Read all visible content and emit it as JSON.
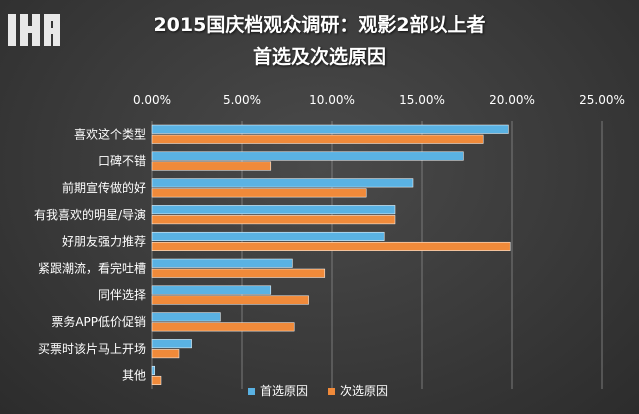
{
  "title_line1": "2015国庆档观众调研：观影2部以上者",
  "title_line2": "首选及次选原因",
  "logo": {
    "icon": "ir-logo-icon"
  },
  "colors": {
    "primary": "#5ab2e3",
    "secondary": "#f08a3a",
    "grid": "#7a7a7a"
  },
  "chart_data": {
    "type": "bar",
    "orientation": "horizontal",
    "title": "2015国庆档观众调研：观影2部以上者 首选及次选原因",
    "categories": [
      "喜欢这个类型",
      "口碑不错",
      "前期宣传做的好",
      "有我喜欢的明星/导演",
      "好朋友强力推荐",
      "紧跟潮流，看完吐槽",
      "同伴选择",
      "票务APP低价促销",
      "买票时该片马上开场",
      "其他"
    ],
    "series": [
      {
        "name": "首选原因",
        "values": [
          19.8,
          17.3,
          14.5,
          13.5,
          12.9,
          7.8,
          6.6,
          3.8,
          2.2,
          0.15
        ]
      },
      {
        "name": "次选原因",
        "values": [
          18.4,
          6.6,
          11.9,
          13.5,
          19.9,
          9.6,
          8.7,
          7.9,
          1.5,
          0.5
        ]
      }
    ],
    "xlim": [
      0,
      25
    ],
    "xticks": [
      "0.00%",
      "5.00%",
      "10.00%",
      "15.00%",
      "20.00%",
      "25.00%"
    ],
    "grid": true,
    "legend": "bottom"
  }
}
